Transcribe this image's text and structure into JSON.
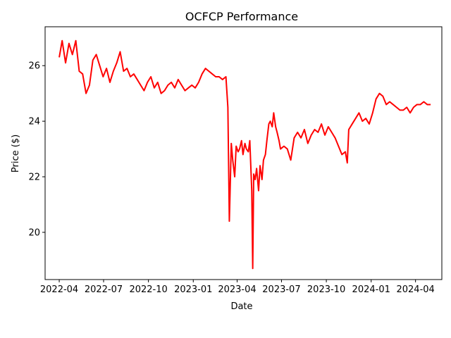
{
  "chart_data": {
    "type": "line",
    "title": "OCFCP Performance",
    "xlabel": "Date",
    "ylabel": "Price ($)",
    "grid": false,
    "x_tick_labels": [
      "2022-04",
      "2022-07",
      "2022-10",
      "2023-01",
      "2023-04",
      "2023-07",
      "2023-10",
      "2024-01",
      "2024-04"
    ],
    "y_ticks": [
      20,
      22,
      24,
      26
    ],
    "xlim": [
      "2022-03-03",
      "2024-05-25"
    ],
    "ylim": [
      18.3,
      27.4
    ],
    "series": [
      {
        "color": "#ff0000",
        "x": [
          "2022-04-01",
          "2022-04-07",
          "2022-04-14",
          "2022-04-21",
          "2022-04-28",
          "2022-05-05",
          "2022-05-12",
          "2022-05-19",
          "2022-05-26",
          "2022-06-02",
          "2022-06-09",
          "2022-06-16",
          "2022-06-23",
          "2022-06-30",
          "2022-07-07",
          "2022-07-14",
          "2022-07-21",
          "2022-07-28",
          "2022-08-04",
          "2022-08-11",
          "2022-08-18",
          "2022-08-25",
          "2022-09-01",
          "2022-09-08",
          "2022-09-15",
          "2022-09-22",
          "2022-09-29",
          "2022-10-06",
          "2022-10-13",
          "2022-10-20",
          "2022-10-27",
          "2022-11-03",
          "2022-11-10",
          "2022-11-17",
          "2022-11-24",
          "2022-12-01",
          "2022-12-08",
          "2022-12-15",
          "2022-12-22",
          "2022-12-29",
          "2023-01-05",
          "2023-01-12",
          "2023-01-19",
          "2023-01-26",
          "2023-02-02",
          "2023-02-09",
          "2023-02-16",
          "2023-02-23",
          "2023-03-02",
          "2023-03-09",
          "2023-03-13",
          "2023-03-16",
          "2023-03-20",
          "2023-03-23",
          "2023-03-27",
          "2023-03-30",
          "2023-04-03",
          "2023-04-06",
          "2023-04-10",
          "2023-04-13",
          "2023-04-17",
          "2023-04-20",
          "2023-04-24",
          "2023-04-27",
          "2023-05-01",
          "2023-05-03",
          "2023-05-05",
          "2023-05-08",
          "2023-05-11",
          "2023-05-15",
          "2023-05-18",
          "2023-05-22",
          "2023-05-25",
          "2023-05-29",
          "2023-06-01",
          "2023-06-05",
          "2023-06-08",
          "2023-06-12",
          "2023-06-15",
          "2023-06-19",
          "2023-06-22",
          "2023-06-26",
          "2023-06-29",
          "2023-07-06",
          "2023-07-13",
          "2023-07-20",
          "2023-07-27",
          "2023-08-03",
          "2023-08-10",
          "2023-08-17",
          "2023-08-24",
          "2023-08-31",
          "2023-09-07",
          "2023-09-14",
          "2023-09-21",
          "2023-09-28",
          "2023-10-05",
          "2023-10-12",
          "2023-10-19",
          "2023-10-26",
          "2023-11-02",
          "2023-11-09",
          "2023-11-13",
          "2023-11-16",
          "2023-11-23",
          "2023-11-30",
          "2023-12-07",
          "2023-12-14",
          "2023-12-21",
          "2023-12-28",
          "2024-01-04",
          "2024-01-11",
          "2024-01-18",
          "2024-01-25",
          "2024-02-01",
          "2024-02-08",
          "2024-02-15",
          "2024-02-22",
          "2024-02-29",
          "2024-03-07",
          "2024-03-14",
          "2024-03-21",
          "2024-03-28",
          "2024-04-04",
          "2024-04-11",
          "2024-04-18",
          "2024-04-25",
          "2024-05-02"
        ],
        "y": [
          26.3,
          26.9,
          26.1,
          26.8,
          26.4,
          26.9,
          25.8,
          25.7,
          25.0,
          25.3,
          26.2,
          26.4,
          26.0,
          25.6,
          25.9,
          25.4,
          25.8,
          26.1,
          26.5,
          25.8,
          25.9,
          25.6,
          25.7,
          25.5,
          25.3,
          25.1,
          25.4,
          25.6,
          25.2,
          25.4,
          25.0,
          25.1,
          25.3,
          25.4,
          25.2,
          25.5,
          25.3,
          25.1,
          25.2,
          25.3,
          25.2,
          25.4,
          25.7,
          25.9,
          25.8,
          25.7,
          25.6,
          25.6,
          25.5,
          25.6,
          24.5,
          20.4,
          23.2,
          22.6,
          22.0,
          23.1,
          22.9,
          23.0,
          23.3,
          22.8,
          23.2,
          23.0,
          22.9,
          23.3,
          21.5,
          18.7,
          22.1,
          21.9,
          22.3,
          21.5,
          22.4,
          21.9,
          22.6,
          22.8,
          23.3,
          23.9,
          24.0,
          23.8,
          24.3,
          23.8,
          23.6,
          23.3,
          23.0,
          23.1,
          23.0,
          22.6,
          23.4,
          23.6,
          23.4,
          23.7,
          23.2,
          23.5,
          23.7,
          23.6,
          23.9,
          23.5,
          23.8,
          23.6,
          23.4,
          23.1,
          22.8,
          22.9,
          22.5,
          23.7,
          23.9,
          24.1,
          24.3,
          24.0,
          24.1,
          23.9,
          24.3,
          24.8,
          25.0,
          24.9,
          24.6,
          24.7,
          24.6,
          24.5,
          24.4,
          24.4,
          24.5,
          24.3,
          24.5,
          24.6,
          24.6,
          24.7,
          24.6,
          24.6
        ]
      }
    ]
  }
}
